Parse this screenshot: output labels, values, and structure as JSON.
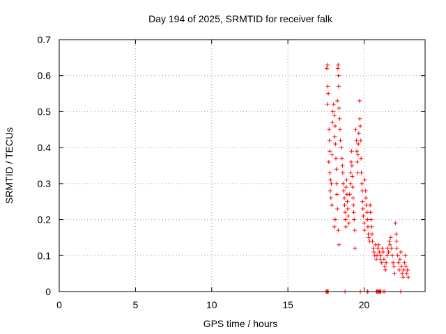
{
  "chart_data": {
    "type": "scatter",
    "title": "Day 194 of 2025, SRMTID for receiver falk",
    "xlabel": "GPS time / hours",
    "ylabel": "SRMTID / TECUs",
    "xlim": [
      0,
      24
    ],
    "ylim": [
      0,
      0.7
    ],
    "xticks": [
      0,
      5,
      10,
      15,
      20
    ],
    "xtick_labels": [
      "0",
      "5",
      "10",
      "15",
      "20"
    ],
    "yticks": [
      0,
      0.1,
      0.2,
      0.3,
      0.4,
      0.5,
      0.6,
      0.7
    ],
    "ytick_labels": [
      "0",
      "0.1",
      "0.2",
      "0.3",
      "0.4",
      "0.5",
      "0.6",
      "0.7"
    ],
    "grid": true,
    "marker": "+",
    "color": "#ff0000",
    "series": [
      {
        "name": "SRMTID",
        "points": [
          [
            17.55,
            0.62
          ],
          [
            17.6,
            0.63
          ],
          [
            17.62,
            0.57
          ],
          [
            17.65,
            0.55
          ],
          [
            17.58,
            0.52
          ],
          [
            17.7,
            0.45
          ],
          [
            17.72,
            0.42
          ],
          [
            17.75,
            0.39
          ],
          [
            17.68,
            0.36
          ],
          [
            17.74,
            0.33
          ],
          [
            17.8,
            0.31
          ],
          [
            17.78,
            0.28
          ],
          [
            17.82,
            0.26
          ],
          [
            17.85,
            0.3
          ],
          [
            17.88,
            0.24
          ],
          [
            17.9,
            0.38
          ],
          [
            17.92,
            0.47
          ],
          [
            17.95,
            0.5
          ],
          [
            18.0,
            0.52
          ],
          [
            18.05,
            0.49
          ],
          [
            18.1,
            0.46
          ],
          [
            18.08,
            0.43
          ],
          [
            18.12,
            0.41
          ],
          [
            18.15,
            0.37
          ],
          [
            18.18,
            0.34
          ],
          [
            18.2,
            0.3
          ],
          [
            18.22,
            0.27
          ],
          [
            18.25,
            0.23
          ],
          [
            18.1,
            0.2
          ],
          [
            18.05,
            0.18
          ],
          [
            18.3,
            0.17
          ],
          [
            18.35,
            0.13
          ],
          [
            18.28,
            0.62
          ],
          [
            18.3,
            0.63
          ],
          [
            18.32,
            0.6
          ],
          [
            18.33,
            0.57
          ],
          [
            18.25,
            0.53
          ],
          [
            18.35,
            0.51
          ],
          [
            18.4,
            0.48
          ],
          [
            18.42,
            0.45
          ],
          [
            18.45,
            0.42
          ],
          [
            18.5,
            0.4
          ],
          [
            18.55,
            0.37
          ],
          [
            18.58,
            0.35
          ],
          [
            18.6,
            0.33
          ],
          [
            18.62,
            0.3
          ],
          [
            18.65,
            0.28
          ],
          [
            18.7,
            0.26
          ],
          [
            18.72,
            0.24
          ],
          [
            18.75,
            0.22
          ],
          [
            18.78,
            0.2
          ],
          [
            18.8,
            0.18
          ],
          [
            18.82,
            0.29
          ],
          [
            18.85,
            0.31
          ],
          [
            18.88,
            0.27
          ],
          [
            18.9,
            0.25
          ],
          [
            18.92,
            0.23
          ],
          [
            18.95,
            0.21
          ],
          [
            19.0,
            0.19
          ],
          [
            19.05,
            0.27
          ],
          [
            19.1,
            0.3
          ],
          [
            19.12,
            0.33
          ],
          [
            19.15,
            0.36
          ],
          [
            19.18,
            0.39
          ],
          [
            19.2,
            0.35
          ],
          [
            19.22,
            0.32
          ],
          [
            19.25,
            0.29
          ],
          [
            19.28,
            0.26
          ],
          [
            19.3,
            0.24
          ],
          [
            19.32,
            0.22
          ],
          [
            19.35,
            0.2
          ],
          [
            19.38,
            0.17
          ],
          [
            19.4,
            0.12
          ],
          [
            19.45,
            0.45
          ],
          [
            19.5,
            0.42
          ],
          [
            19.52,
            0.39
          ],
          [
            19.55,
            0.36
          ],
          [
            19.58,
            0.33
          ],
          [
            19.6,
            0.38
          ],
          [
            19.62,
            0.41
          ],
          [
            19.65,
            0.44
          ],
          [
            19.7,
            0.53
          ],
          [
            19.72,
            0.48
          ],
          [
            19.75,
            0.46
          ],
          [
            19.78,
            0.42
          ],
          [
            19.8,
            0.37
          ],
          [
            19.82,
            0.33
          ],
          [
            19.85,
            0.3
          ],
          [
            19.88,
            0.28
          ],
          [
            19.9,
            0.25
          ],
          [
            19.92,
            0.23
          ],
          [
            19.95,
            0.21
          ],
          [
            20.0,
            0.19
          ],
          [
            20.02,
            0.17
          ],
          [
            20.05,
            0.31
          ],
          [
            20.1,
            0.28
          ],
          [
            20.12,
            0.26
          ],
          [
            20.15,
            0.24
          ],
          [
            20.2,
            0.22
          ],
          [
            20.22,
            0.2
          ],
          [
            20.25,
            0.18
          ],
          [
            20.28,
            0.16
          ],
          [
            20.3,
            0.15
          ],
          [
            20.35,
            0.14
          ],
          [
            20.4,
            0.24
          ],
          [
            20.42,
            0.22
          ],
          [
            20.45,
            0.2
          ],
          [
            20.5,
            0.18
          ],
          [
            20.52,
            0.16
          ],
          [
            20.55,
            0.14
          ],
          [
            20.6,
            0.12
          ],
          [
            20.65,
            0.11
          ],
          [
            20.7,
            0.1
          ],
          [
            20.75,
            0.13
          ],
          [
            20.8,
            0.09
          ],
          [
            20.85,
            0.1
          ],
          [
            20.9,
            0.12
          ],
          [
            20.95,
            0.13
          ],
          [
            21.0,
            0.11
          ],
          [
            21.05,
            0.09
          ],
          [
            21.1,
            0.1
          ],
          [
            21.15,
            0.08
          ],
          [
            21.2,
            0.12
          ],
          [
            21.25,
            0.11
          ],
          [
            21.3,
            0.09
          ],
          [
            21.35,
            0.07
          ],
          [
            21.4,
            0.06
          ],
          [
            21.45,
            0.08
          ],
          [
            21.5,
            0.1
          ],
          [
            21.55,
            0.12
          ],
          [
            21.6,
            0.11
          ],
          [
            21.65,
            0.14
          ],
          [
            21.7,
            0.13
          ],
          [
            21.75,
            0.15
          ],
          [
            21.8,
            0.12
          ],
          [
            21.85,
            0.1
          ],
          [
            21.9,
            0.08
          ],
          [
            21.95,
            0.07
          ],
          [
            22.0,
            0.05
          ],
          [
            22.05,
            0.19
          ],
          [
            22.1,
            0.16
          ],
          [
            22.12,
            0.14
          ],
          [
            22.15,
            0.12
          ],
          [
            22.2,
            0.1
          ],
          [
            22.25,
            0.08
          ],
          [
            22.3,
            0.06
          ],
          [
            22.35,
            0.09
          ],
          [
            22.4,
            0.11
          ],
          [
            22.45,
            0.07
          ],
          [
            22.5,
            0.05
          ],
          [
            22.55,
            0.04
          ],
          [
            22.6,
            0.06
          ],
          [
            22.65,
            0.08
          ],
          [
            22.7,
            0.1
          ],
          [
            22.75,
            0.07
          ],
          [
            22.8,
            0.05
          ],
          [
            22.85,
            0.06
          ],
          [
            22.9,
            0.04
          ],
          [
            17.5,
            0.0
          ],
          [
            17.55,
            0.0
          ],
          [
            17.6,
            0.0
          ],
          [
            17.65,
            0.0
          ],
          [
            18.75,
            0.0
          ],
          [
            19.75,
            0.0
          ],
          [
            20.2,
            0.0
          ],
          [
            20.25,
            0.0
          ],
          [
            20.8,
            0.0
          ],
          [
            20.85,
            0.0
          ],
          [
            20.9,
            0.0
          ],
          [
            20.95,
            0.0
          ],
          [
            21.0,
            0.0
          ],
          [
            21.05,
            0.0
          ],
          [
            21.1,
            0.0
          ],
          [
            21.25,
            0.0
          ],
          [
            21.35,
            0.0
          ],
          [
            22.4,
            0.0
          ]
        ]
      }
    ]
  }
}
